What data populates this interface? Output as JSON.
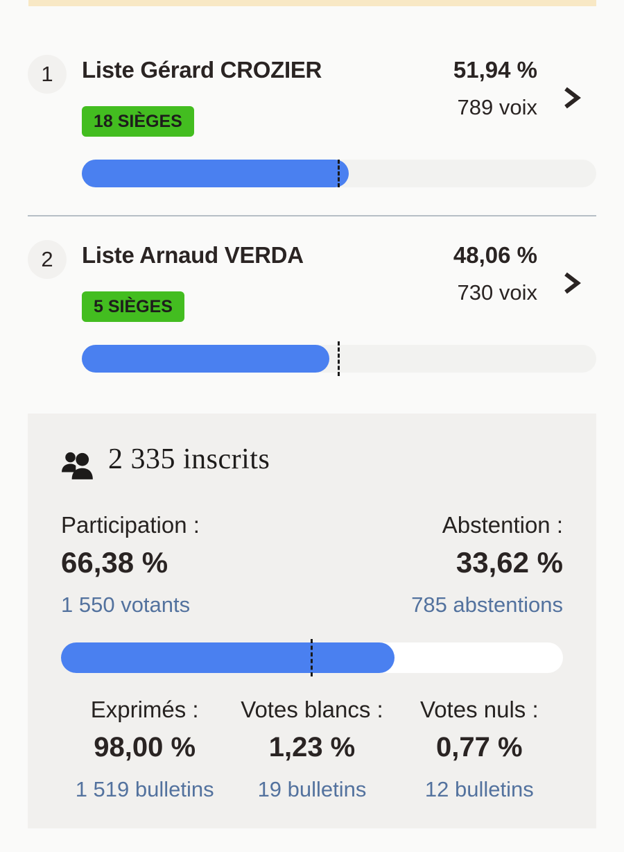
{
  "page": {
    "accent_strip_color": "#f8e8c5",
    "panel_background": "#f1f0ee",
    "bar_fill_color": "#4a80f0",
    "badge_color": "#43bd20",
    "link_blue_color": "#53729e"
  },
  "results": [
    {
      "rank": "1",
      "name": "Liste Gérard CROZIER",
      "percent_label": "51,94 %",
      "votes_label": "789 voix",
      "seats_label": "18 SIÈGES",
      "percent": 51.94,
      "majority_mark_percent": 50
    },
    {
      "rank": "2",
      "name": "Liste Arnaud VERDA",
      "percent_label": "48,06 %",
      "votes_label": "730 voix",
      "seats_label": "5 SIÈGES",
      "percent": 48.06,
      "majority_mark_percent": 50
    }
  ],
  "stats": {
    "inscrits_label": "2 335 inscrits",
    "participation": {
      "label": "Participation :",
      "percent_label": "66,38 %",
      "detail": "1 550 votants",
      "percent": 66.38
    },
    "abstention": {
      "label": "Abstention :",
      "percent_label": "33,62 %",
      "detail": "785 abstentions",
      "percent": 33.62
    },
    "bar": {
      "percent": 66.38,
      "mark_percent": 50
    },
    "breakdown": [
      {
        "label": "Exprimés :",
        "percent_label": "98,00 %",
        "detail": "1 519 bulletins"
      },
      {
        "label": "Votes blancs :",
        "percent_label": "1,23 %",
        "detail": "19 bulletins"
      },
      {
        "label": "Votes nuls :",
        "percent_label": "0,77 %",
        "detail": "12 bulletins"
      }
    ]
  }
}
